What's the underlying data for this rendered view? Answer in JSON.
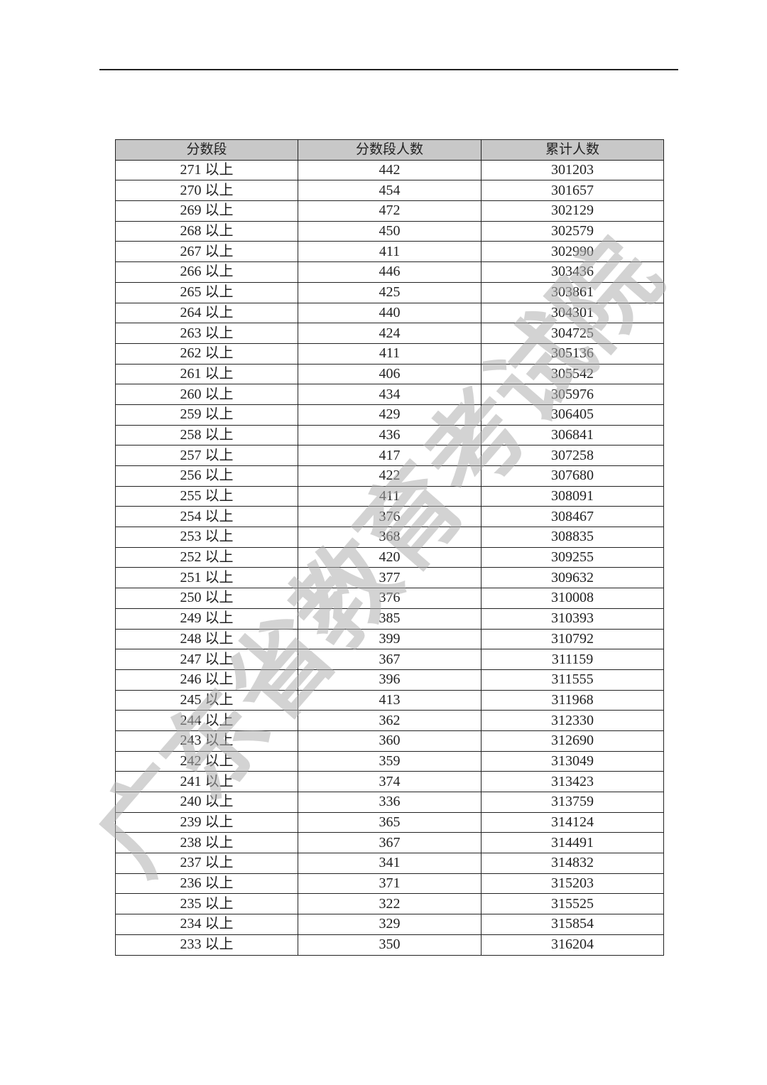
{
  "table": {
    "header": [
      "分数段",
      "分数段人数",
      "累计人数"
    ],
    "rows": [
      [
        "271 以上",
        "442",
        "301203"
      ],
      [
        "270 以上",
        "454",
        "301657"
      ],
      [
        "269 以上",
        "472",
        "302129"
      ],
      [
        "268 以上",
        "450",
        "302579"
      ],
      [
        "267 以上",
        "411",
        "302990"
      ],
      [
        "266 以上",
        "446",
        "303436"
      ],
      [
        "265 以上",
        "425",
        "303861"
      ],
      [
        "264 以上",
        "440",
        "304301"
      ],
      [
        "263 以上",
        "424",
        "304725"
      ],
      [
        "262 以上",
        "411",
        "305136"
      ],
      [
        "261 以上",
        "406",
        "305542"
      ],
      [
        "260 以上",
        "434",
        "305976"
      ],
      [
        "259 以上",
        "429",
        "306405"
      ],
      [
        "258 以上",
        "436",
        "306841"
      ],
      [
        "257 以上",
        "417",
        "307258"
      ],
      [
        "256 以上",
        "422",
        "307680"
      ],
      [
        "255 以上",
        "411",
        "308091"
      ],
      [
        "254 以上",
        "376",
        "308467"
      ],
      [
        "253 以上",
        "368",
        "308835"
      ],
      [
        "252 以上",
        "420",
        "309255"
      ],
      [
        "251 以上",
        "377",
        "309632"
      ],
      [
        "250 以上",
        "376",
        "310008"
      ],
      [
        "249 以上",
        "385",
        "310393"
      ],
      [
        "248 以上",
        "399",
        "310792"
      ],
      [
        "247 以上",
        "367",
        "311159"
      ],
      [
        "246 以上",
        "396",
        "311555"
      ],
      [
        "245 以上",
        "413",
        "311968"
      ],
      [
        "244 以上",
        "362",
        "312330"
      ],
      [
        "243 以上",
        "360",
        "312690"
      ],
      [
        "242 以上",
        "359",
        "313049"
      ],
      [
        "241 以上",
        "374",
        "313423"
      ],
      [
        "240 以上",
        "336",
        "313759"
      ],
      [
        "239 以上",
        "365",
        "314124"
      ],
      [
        "238 以上",
        "367",
        "314491"
      ],
      [
        "237 以上",
        "341",
        "314832"
      ],
      [
        "236 以上",
        "371",
        "315203"
      ],
      [
        "235 以上",
        "322",
        "315525"
      ],
      [
        "234 以上",
        "329",
        "315854"
      ],
      [
        "233 以上",
        "350",
        "316204"
      ]
    ]
  },
  "watermark": "广东省教育考试院"
}
